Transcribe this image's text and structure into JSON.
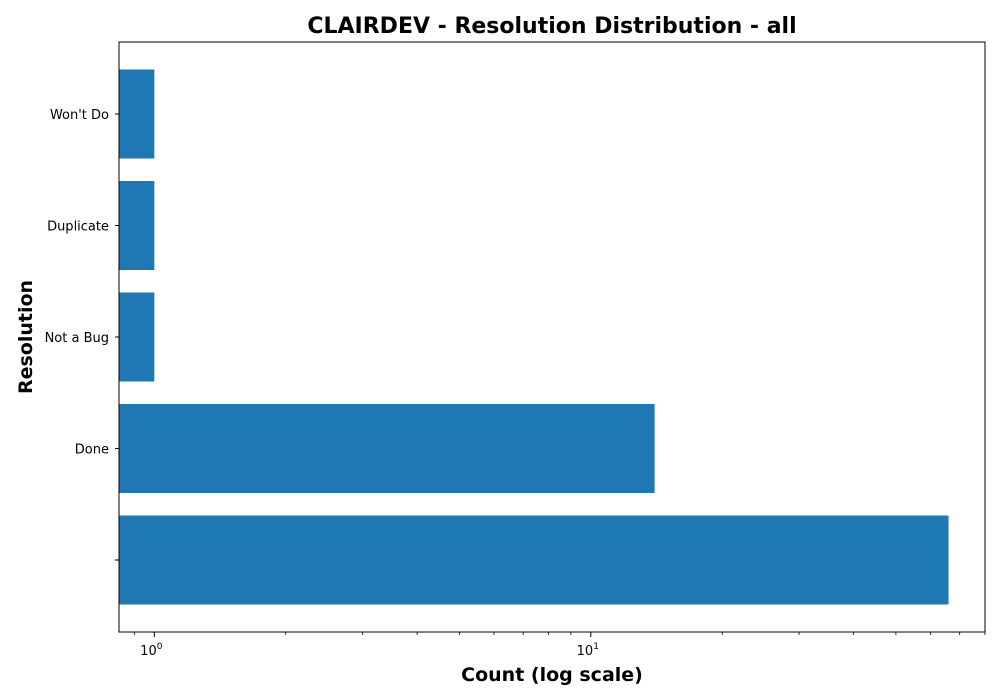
{
  "chart_data": {
    "type": "bar",
    "orientation": "horizontal",
    "title": "CLAIRDEV - Resolution Distribution - all",
    "xlabel": "Count (log scale)",
    "ylabel": "Resolution",
    "x_scale": "log",
    "xlim": [
      0.83,
      80
    ],
    "x_ticks": [
      {
        "value": 1,
        "base": "10",
        "exponent": "0"
      },
      {
        "value": 10,
        "base": "10",
        "exponent": "1"
      }
    ],
    "categories": [
      "",
      "Done",
      "Not a Bug",
      "Duplicate",
      "Won't Do"
    ],
    "values": [
      66,
      14,
      1,
      1,
      1
    ],
    "bar_color": "#1f77b4",
    "grid": false,
    "legend": "none"
  }
}
